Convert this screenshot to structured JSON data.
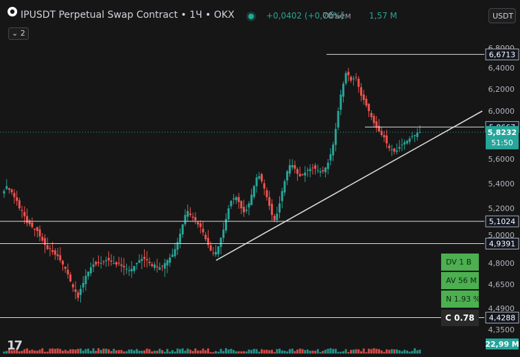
{
  "header": {
    "title": "IPUSDT Perpetual Swap Contract • 1Ч • OKX",
    "change": "+0,0402 (+0,70%)",
    "volume_label": "Объём",
    "volume_value": "1,57 M",
    "collapse_label": "2",
    "currency": "USDT"
  },
  "indicator_panel": {
    "dv": "DV 1 B",
    "av": "AV 56 M",
    "n": "N 1.93 %",
    "c": "C  0.78"
  },
  "colors": {
    "background": "#161616",
    "up": "#26a69a",
    "down": "#ef5350",
    "line": "#e0e0e0",
    "badge_green": "#26a69a",
    "badge_dark": "#131722",
    "indicator": "#4caf50"
  },
  "chart_data": {
    "type": "candlestick",
    "y_axis": {
      "ticks": [
        "6,8000",
        "6,4000",
        "6,2000",
        "6,0000",
        "5,6000",
        "5,4000",
        "5,2000",
        "5,0000",
        "4,8000",
        "4,6500",
        "4,4900",
        "4,3500"
      ]
    },
    "horizontal_levels": [
      {
        "value": 6.6713,
        "label": "6,6713"
      },
      {
        "value": 5.8667,
        "label": "5,8667"
      },
      {
        "value": 5.1024,
        "label": "5,1024"
      },
      {
        "value": 4.9391,
        "label": "4,9391"
      },
      {
        "value": 4.4288,
        "label": "4,4288"
      }
    ],
    "current_price": {
      "value": 5.8232,
      "label": "5,8232",
      "countdown": "51:50"
    },
    "trendline": {
      "from": 4.82,
      "to": 6.0
    },
    "closes": [
      5.34,
      5.38,
      5.35,
      5.33,
      5.29,
      5.26,
      5.2,
      5.18,
      5.14,
      5.09,
      5.08,
      5.06,
      5.04,
      5.03,
      4.99,
      4.96,
      4.93,
      4.9,
      4.9,
      4.88,
      4.86,
      4.85,
      4.82,
      4.79,
      4.76,
      4.72,
      4.67,
      4.63,
      4.6,
      4.56,
      4.62,
      4.66,
      4.71,
      4.74,
      4.77,
      4.79,
      4.79,
      4.8,
      4.8,
      4.81,
      4.82,
      4.82,
      4.81,
      4.8,
      4.79,
      4.8,
      4.78,
      4.77,
      4.76,
      4.75,
      4.76,
      4.78,
      4.8,
      4.82,
      4.83,
      4.83,
      4.82,
      4.8,
      4.78,
      4.79,
      4.77,
      4.77,
      4.78,
      4.8,
      4.82,
      4.84,
      4.86,
      4.9,
      4.95,
      5.01,
      5.08,
      5.15,
      5.18,
      5.15,
      5.13,
      5.11,
      5.08,
      5.06,
      5.02,
      4.97,
      4.93,
      4.89,
      4.87,
      4.88,
      4.92,
      4.98,
      5.04,
      5.12,
      5.2,
      5.26,
      5.28,
      5.29,
      5.25,
      5.2,
      5.17,
      5.19,
      5.24,
      5.31,
      5.38,
      5.45,
      5.46,
      5.42,
      5.36,
      5.29,
      5.22,
      5.15,
      5.11,
      5.16,
      5.24,
      5.34,
      5.42,
      5.5,
      5.55,
      5.55,
      5.52,
      5.48,
      5.46,
      5.47,
      5.49,
      5.51,
      5.52,
      5.53,
      5.52,
      5.51,
      5.5,
      5.5,
      5.53,
      5.57,
      5.64,
      5.72,
      5.85,
      6.0,
      6.15,
      6.25,
      6.35,
      6.33,
      6.28,
      6.3,
      6.31,
      6.22,
      6.14,
      6.1,
      6.05,
      6.0,
      5.95,
      5.9,
      5.86,
      5.83,
      5.8,
      5.78,
      5.73,
      5.69,
      5.68,
      5.66,
      5.67,
      5.7,
      5.72,
      5.74,
      5.75,
      5.77,
      5.79,
      5.8,
      5.82,
      5.8232
    ],
    "volume_label": "22,99 M"
  }
}
